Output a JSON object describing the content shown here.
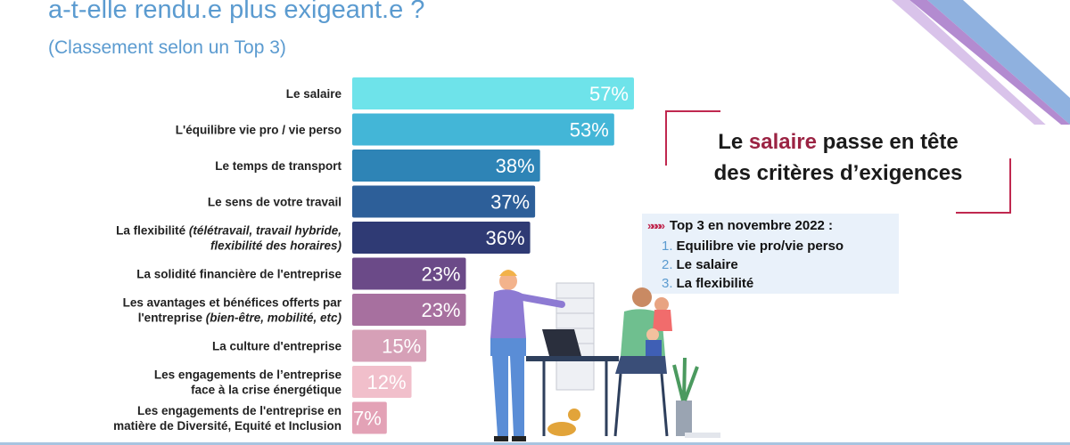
{
  "header": {
    "title": "a-t-elle rendu.e plus exigeant.e ?",
    "subtitle": "(Classement selon un Top 3)"
  },
  "chart_data": {
    "type": "bar",
    "orientation": "horizontal",
    "categories": [
      {
        "main": "Le salaire",
        "lines": [
          "Le salaire"
        ]
      },
      {
        "main": "L'équilibre vie pro / vie perso",
        "lines": [
          "L'équilibre vie pro / vie perso"
        ]
      },
      {
        "main": "Le temps de transport",
        "lines": [
          "Le temps de transport"
        ]
      },
      {
        "main": "Le sens de votre travail",
        "lines": [
          "Le sens de votre travail"
        ]
      },
      {
        "main": "La flexibilité",
        "lines": [
          "La flexibilité (télétravail, travail hybride,",
          "flexibilité des horaires)"
        ]
      },
      {
        "main": "La solidité financière de l'entreprise",
        "lines": [
          "La solidité financière de l'entreprise"
        ]
      },
      {
        "main": "Les avantages et bénéfices offerts par l'entreprise",
        "lines": [
          "Les avantages et bénéfices offerts par",
          "l'entreprise (bien-être, mobilité, etc)"
        ]
      },
      {
        "main": "La culture d'entreprise",
        "lines": [
          "La culture d'entreprise"
        ]
      },
      {
        "main": "Les engagements de l'entreprise face à la crise énergétique",
        "lines": [
          "Les engagements de l’entreprise",
          "face à la crise énergétique"
        ]
      },
      {
        "main": "Les engagements de l'entreprise en matière de Diversité, Equité et Inclusion",
        "lines": [
          "Les engagements de l'entreprise en",
          "matière de Diversité, Equité et Inclusion"
        ]
      }
    ],
    "values": [
      57,
      53,
      38,
      37,
      36,
      23,
      23,
      15,
      12,
      7
    ],
    "value_labels": [
      "57%",
      "53%",
      "38%",
      "37%",
      "36%",
      "23%",
      "23%",
      "15%",
      "12%",
      "7%"
    ],
    "colors": [
      "#6ee3ea",
      "#43b6d7",
      "#2e84b6",
      "#2d5f99",
      "#2f3a74",
      "#6b4a88",
      "#a7709f",
      "#d6a0b7",
      "#f1bfcb",
      "#e3a2b6"
    ],
    "xlim": [
      0,
      100
    ],
    "grid": false
  },
  "callout": {
    "pre": "Le ",
    "highlight": "salaire",
    "post": " passe en tête",
    "line2": "des critères d’exigences"
  },
  "top3": {
    "arrows": "»»»»",
    "heading": "Top 3 en novembre 2022 :",
    "items": [
      {
        "num": "1.",
        "label": "Equilibre vie pro/vie perso"
      },
      {
        "num": "2.",
        "label": "Le salaire"
      },
      {
        "num": "3.",
        "label": "La flexibilité"
      }
    ]
  },
  "colors": {
    "title": "#5b9bd0",
    "accent": "#9b2343",
    "callout_frame": "#c0284f",
    "box_bg": "#e9f1fa"
  }
}
